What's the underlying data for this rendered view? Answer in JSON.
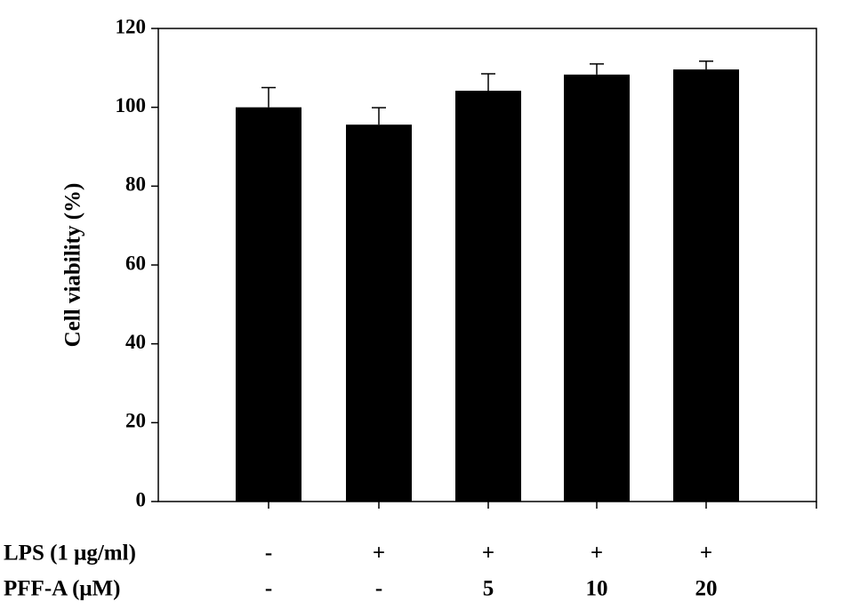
{
  "chart_data": {
    "type": "bar",
    "y_label": "Cell viability (%)",
    "categories": [
      null,
      null,
      null,
      null,
      null
    ],
    "values": [
      100,
      95.6,
      104.2,
      108.3,
      109.6
    ],
    "errors": [
      5,
      4.3,
      4.3,
      2.7,
      2.1
    ],
    "color": "#000000",
    "ylim": [
      0,
      120
    ],
    "yticks": [
      0,
      20,
      40,
      60,
      80,
      100,
      120
    ],
    "x_rows": [
      {
        "name": "LPS (1 μg/ml)",
        "labels": [
          "-",
          "+",
          "+",
          "+",
          "+"
        ]
      },
      {
        "name": "PFF-A (μM)",
        "labels": [
          "-",
          "-",
          "5",
          "10",
          "20"
        ]
      }
    ]
  }
}
